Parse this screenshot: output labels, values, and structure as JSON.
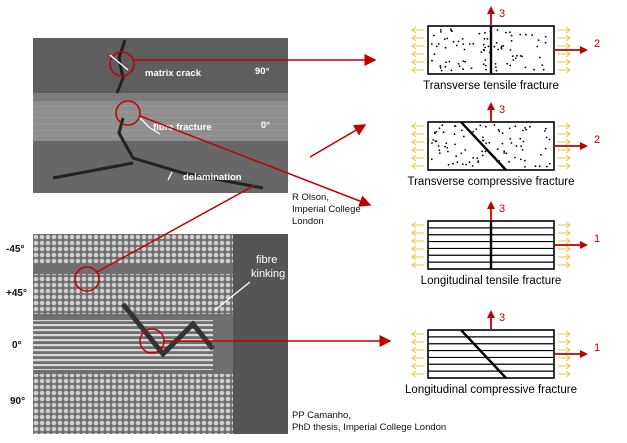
{
  "micrograph_top": {
    "labels": {
      "matrix_crack": "matrix crack",
      "ply_90": "90°",
      "fibre_fracture": "fibre fracture",
      "ply_0": "0°",
      "delamination": "delamination"
    },
    "credit": [
      "R Olson,",
      "Imperial College",
      "London"
    ]
  },
  "micrograph_bottom": {
    "angles": [
      "-45°",
      "+45°",
      "0°",
      "90°"
    ],
    "labels": {
      "fibre_kinking_1": "fibre",
      "fibre_kinking_2": "kinking"
    },
    "credit": [
      "PP Camanho,",
      "PhD thesis, Imperial College London"
    ]
  },
  "modes": [
    {
      "caption": "Transverse tensile fracture",
      "dir_up": "3",
      "dir_right": "2"
    },
    {
      "caption": "Transverse compressive fracture",
      "dir_up": "3",
      "dir_right": "2"
    },
    {
      "caption": "Longitudinal tensile fracture",
      "dir_up": "3",
      "dir_right": "1"
    },
    {
      "caption": "Longitudinal compressive fracture",
      "dir_up": "3",
      "dir_right": "1"
    }
  ],
  "colors": {
    "arrow": "#c00000",
    "load": "#e8c840"
  }
}
